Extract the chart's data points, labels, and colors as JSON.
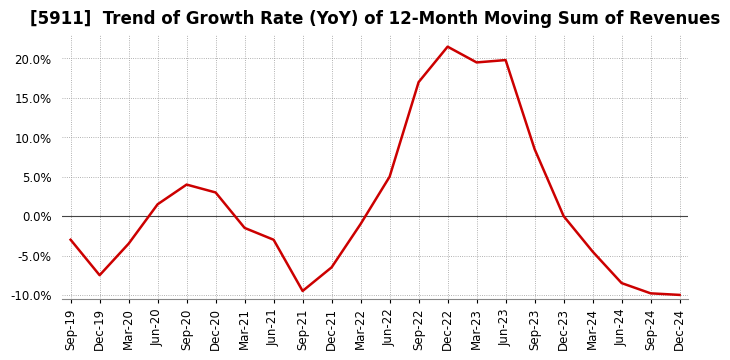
{
  "title": "[5911]  Trend of Growth Rate (YoY) of 12-Month Moving Sum of Revenues",
  "x_labels": [
    "Sep-19",
    "Dec-19",
    "Mar-20",
    "Jun-20",
    "Sep-20",
    "Dec-20",
    "Mar-21",
    "Jun-21",
    "Sep-21",
    "Dec-21",
    "Mar-22",
    "Jun-22",
    "Sep-22",
    "Dec-22",
    "Mar-23",
    "Jun-23",
    "Sep-23",
    "Dec-23",
    "Mar-24",
    "Jun-24",
    "Sep-24",
    "Dec-24"
  ],
  "y_values": [
    -3.0,
    -7.5,
    -3.5,
    1.5,
    4.0,
    3.0,
    -1.5,
    -3.0,
    -9.5,
    -6.5,
    -1.0,
    5.0,
    17.0,
    21.5,
    19.5,
    19.8,
    8.5,
    0.0,
    -4.5,
    -8.5,
    -9.8,
    -10.0
  ],
  "line_color": "#cc0000",
  "line_width": 1.8,
  "background_color": "#ffffff",
  "plot_bg_color": "#ffffff",
  "grid_color": "#999999",
  "ylim": [
    -10.5,
    23.0
  ],
  "yticks": [
    -10.0,
    -5.0,
    0.0,
    5.0,
    10.0,
    15.0,
    20.0
  ],
  "zero_line_color": "#444444",
  "title_fontsize": 12,
  "tick_fontsize": 8.5
}
